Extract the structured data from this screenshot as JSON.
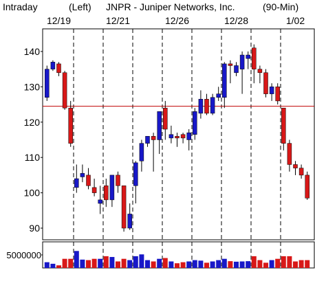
{
  "chart_data": {
    "type": "candlestick",
    "title_parts": [
      "Intraday",
      "(Left)",
      "JNPR - Juniper Networks, Inc.",
      "(90-Min)"
    ],
    "categories": [
      null,
      null,
      "12/19",
      null,
      null,
      null,
      null,
      null,
      null,
      null,
      null,
      null,
      "12/21",
      null,
      null,
      null,
      null,
      null,
      null,
      null,
      null,
      null,
      "12/26",
      null,
      null,
      null,
      null,
      null,
      null,
      null,
      null,
      null,
      "12/28",
      null,
      null,
      null,
      null,
      null,
      null,
      null,
      null,
      null,
      "1/02",
      null,
      null
    ],
    "open": [
      127,
      135,
      136.5,
      134,
      124,
      101.5,
      104.5,
      105,
      101.5,
      97,
      102,
      98,
      105,
      102,
      90,
      102,
      109,
      114,
      116,
      115,
      124,
      115.5,
      116,
      116.5,
      115,
      116.5,
      122.5,
      126.5,
      122.5,
      127,
      127,
      136.5,
      134,
      135,
      138,
      141,
      135,
      134,
      128,
      130,
      124,
      114,
      108,
      107,
      105
    ],
    "high": [
      136,
      137.5,
      137,
      134.5,
      126,
      108,
      108,
      107,
      104,
      102,
      104,
      105,
      106,
      102,
      97,
      109,
      115,
      116,
      117,
      123,
      126,
      119,
      117,
      117,
      118,
      124,
      129,
      128,
      128,
      130,
      137,
      137.5,
      137,
      140,
      140,
      142,
      136,
      135,
      131,
      131,
      124,
      115,
      109,
      108,
      106
    ],
    "low": [
      126,
      134.5,
      133,
      123.5,
      113,
      100,
      103,
      101,
      99,
      94,
      96,
      96,
      100,
      89,
      89.5,
      97,
      106,
      113,
      106,
      111,
      115,
      114,
      113,
      114,
      112,
      115,
      121,
      122,
      122,
      126,
      124,
      131,
      133,
      128,
      135,
      131,
      131,
      127,
      126,
      125,
      112,
      106,
      105,
      104,
      98
    ],
    "close": [
      135,
      137,
      134,
      124,
      114,
      104,
      105.5,
      102,
      100,
      98,
      98,
      105,
      102,
      90,
      94,
      108.5,
      114,
      116,
      115,
      123,
      118,
      116.5,
      115.5,
      115.5,
      117,
      123,
      126.5,
      122.5,
      127,
      128,
      136.5,
      136,
      136,
      139,
      139,
      135,
      134,
      128,
      130,
      126,
      114,
      108,
      107,
      105,
      98.5
    ],
    "volume": [
      2200000,
      1600000,
      1000000,
      3500000,
      3500000,
      6500000,
      3200000,
      3000000,
      3500000,
      3500000,
      4500000,
      4200000,
      2500000,
      3500000,
      3000000,
      4500000,
      5200000,
      3000000,
      2500000,
      3500000,
      3800000,
      2500000,
      1800000,
      2200000,
      2500000,
      3000000,
      2800000,
      2000000,
      2500000,
      3000000,
      3500000,
      2600000,
      2400000,
      2500000,
      2600000,
      4500000,
      3000000,
      2000000,
      3000000,
      3500000,
      4500000,
      4500000,
      2500000,
      3000000,
      3000000
    ],
    "up_color": "#1818c8",
    "down_color": "#d81818",
    "reference_line": 124.5,
    "reference_color": "#c00000",
    "ylim": [
      86.7,
      146.4
    ],
    "yticks": [
      90,
      100,
      110,
      120,
      130,
      140
    ],
    "volume_ylim": [
      0,
      10000000
    ],
    "volume_yticks": [
      5000000
    ]
  }
}
